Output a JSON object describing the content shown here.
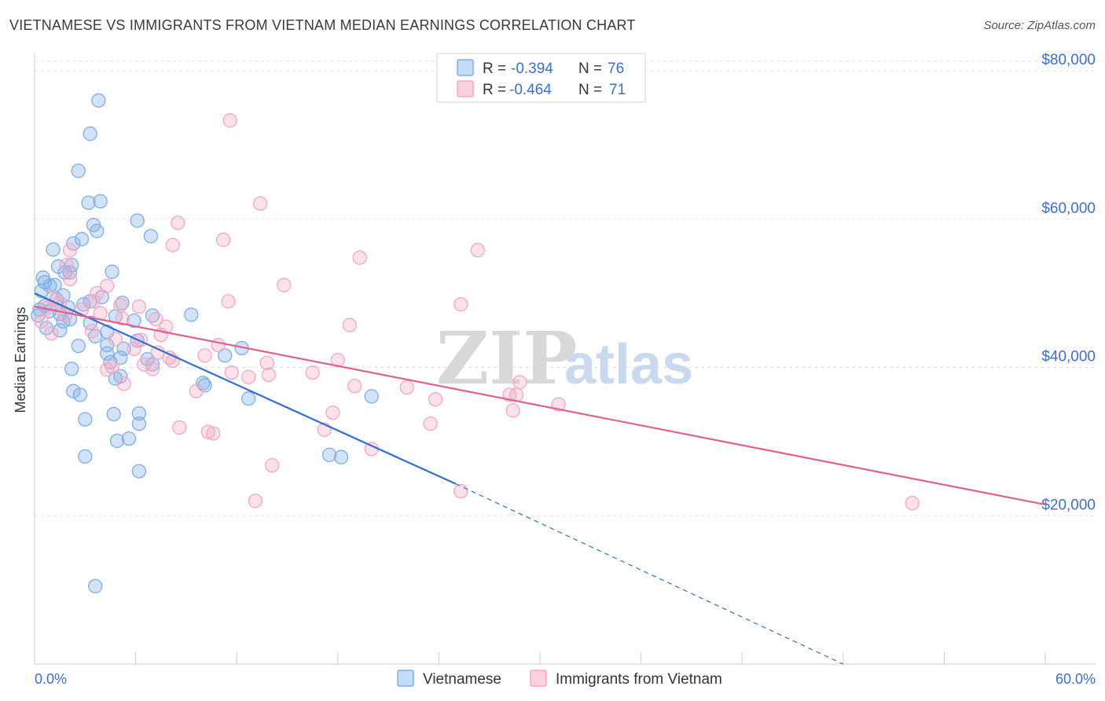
{
  "title": "VIETNAMESE VS IMMIGRANTS FROM VIETNAM MEDIAN EARNINGS CORRELATION CHART",
  "source": "Source: ZipAtlas.com",
  "watermark": {
    "zip": "ZIP",
    "atlas": "atlas"
  },
  "legend_top": {
    "r_label": "R =",
    "n_label": "N =",
    "rows": [
      {
        "r": "-0.394",
        "n": "76"
      },
      {
        "r": "-0.464",
        "n": "71"
      }
    ]
  },
  "chart_data": {
    "type": "scatter",
    "title": "VIETNAMESE VS IMMIGRANTS FROM VIETNAM MEDIAN EARNINGS CORRELATION CHART",
    "xlabel": "",
    "ylabel": "Median Earnings",
    "xlim": [
      0,
      60
    ],
    "ylim": [
      0,
      83500
    ],
    "x_tick_labels": [
      "0.0%",
      "60.0%"
    ],
    "y_ticks": [
      20000,
      40000,
      60000,
      80000
    ],
    "y_tick_labels": [
      "$20,000",
      "$40,000",
      "$60,000",
      "$80,000"
    ],
    "grid": true,
    "legend_position": "top-center",
    "series": [
      {
        "name": "Vietnamese",
        "color": "#7eaee8",
        "line_color": "#2e6fd1",
        "r": -0.394,
        "n": 76,
        "trend": {
          "x0": 0,
          "y0": 50000,
          "x1": 25,
          "y1": 24300,
          "dash_to_x": 48,
          "dash_to_y": 0
        },
        "points": [
          [
            3.8,
            76000
          ],
          [
            3.3,
            71500
          ],
          [
            2.6,
            66500
          ],
          [
            3.2,
            62200
          ],
          [
            3.9,
            62400
          ],
          [
            6.1,
            59800
          ],
          [
            3.5,
            59200
          ],
          [
            3.7,
            58400
          ],
          [
            6.9,
            57700
          ],
          [
            2.8,
            57300
          ],
          [
            2.3,
            56700
          ],
          [
            1.1,
            55900
          ],
          [
            1.4,
            53600
          ],
          [
            2.2,
            53800
          ],
          [
            4.6,
            52900
          ],
          [
            2.1,
            52800
          ],
          [
            0.5,
            52100
          ],
          [
            0.6,
            51500
          ],
          [
            0.9,
            51000
          ],
          [
            1.2,
            51100
          ],
          [
            0.4,
            50300
          ],
          [
            1.7,
            49700
          ],
          [
            1.3,
            49200
          ],
          [
            4.0,
            49500
          ],
          [
            3.3,
            48900
          ],
          [
            5.2,
            48700
          ],
          [
            0.6,
            48300
          ],
          [
            2.0,
            48100
          ],
          [
            0.3,
            47800
          ],
          [
            0.9,
            47600
          ],
          [
            1.5,
            47200
          ],
          [
            7.0,
            47000
          ],
          [
            9.3,
            47100
          ],
          [
            2.1,
            46500
          ],
          [
            1.7,
            46200
          ],
          [
            3.3,
            46000
          ],
          [
            5.9,
            46300
          ],
          [
            0.7,
            45300
          ],
          [
            1.5,
            45000
          ],
          [
            4.3,
            44800
          ],
          [
            3.6,
            44200
          ],
          [
            4.3,
            43000
          ],
          [
            6.1,
            43600
          ],
          [
            2.6,
            42900
          ],
          [
            5.3,
            42500
          ],
          [
            12.3,
            42600
          ],
          [
            4.3,
            41900
          ],
          [
            11.3,
            41600
          ],
          [
            5.1,
            41300
          ],
          [
            6.7,
            41100
          ],
          [
            4.5,
            40700
          ],
          [
            7.0,
            40400
          ],
          [
            2.2,
            39800
          ],
          [
            5.1,
            38800
          ],
          [
            4.8,
            38500
          ],
          [
            10.0,
            37900
          ],
          [
            10.1,
            37600
          ],
          [
            2.3,
            36800
          ],
          [
            2.7,
            36300
          ],
          [
            20.0,
            36100
          ],
          [
            12.7,
            35800
          ],
          [
            6.2,
            33800
          ],
          [
            4.7,
            33700
          ],
          [
            3.0,
            33000
          ],
          [
            6.2,
            32400
          ],
          [
            4.9,
            30100
          ],
          [
            5.6,
            30400
          ],
          [
            3.0,
            28000
          ],
          [
            17.5,
            28200
          ],
          [
            18.2,
            27900
          ],
          [
            6.2,
            26000
          ],
          [
            3.6,
            10500
          ],
          [
            0.2,
            47000
          ],
          [
            1.8,
            52800
          ],
          [
            2.9,
            48500
          ],
          [
            4.8,
            46900
          ]
        ]
      },
      {
        "name": "Immigrants from Vietnam",
        "color": "#f4a8c1",
        "line_color": "#e0618e",
        "r": -0.464,
        "n": 71,
        "trend": {
          "x0": 0,
          "y0": 48200,
          "x1": 60,
          "y1": 21500
        },
        "points": [
          [
            11.6,
            73300
          ],
          [
            13.4,
            62100
          ],
          [
            8.5,
            59500
          ],
          [
            11.2,
            57200
          ],
          [
            8.2,
            56500
          ],
          [
            19.3,
            54800
          ],
          [
            26.3,
            55800
          ],
          [
            1.9,
            53800
          ],
          [
            2.1,
            55800
          ],
          [
            2.1,
            51900
          ],
          [
            4.3,
            51000
          ],
          [
            14.8,
            51100
          ],
          [
            3.7,
            50000
          ],
          [
            1.1,
            49300
          ],
          [
            1.5,
            48700
          ],
          [
            3.5,
            48900
          ],
          [
            11.5,
            48900
          ],
          [
            25.3,
            48500
          ],
          [
            5.1,
            48400
          ],
          [
            6.2,
            48200
          ],
          [
            0.7,
            48000
          ],
          [
            2.8,
            47800
          ],
          [
            3.9,
            47300
          ],
          [
            1.8,
            47000
          ],
          [
            5.2,
            46600
          ],
          [
            7.2,
            46500
          ],
          [
            0.4,
            46200
          ],
          [
            18.7,
            45700
          ],
          [
            7.8,
            45500
          ],
          [
            3.4,
            44900
          ],
          [
            7.5,
            44400
          ],
          [
            1.0,
            44600
          ],
          [
            4.8,
            43800
          ],
          [
            6.3,
            43700
          ],
          [
            5.9,
            42500
          ],
          [
            10.9,
            43000
          ],
          [
            7.3,
            42000
          ],
          [
            10.1,
            41600
          ],
          [
            8.0,
            41300
          ],
          [
            8.2,
            40900
          ],
          [
            18.0,
            41000
          ],
          [
            6.5,
            40400
          ],
          [
            13.8,
            40600
          ],
          [
            4.6,
            40100
          ],
          [
            7.0,
            39800
          ],
          [
            4.3,
            39700
          ],
          [
            11.7,
            39300
          ],
          [
            16.5,
            39300
          ],
          [
            12.7,
            38700
          ],
          [
            13.9,
            39000
          ],
          [
            5.3,
            37800
          ],
          [
            19.0,
            37500
          ],
          [
            22.1,
            37300
          ],
          [
            28.8,
            38000
          ],
          [
            9.6,
            36800
          ],
          [
            28.2,
            36300
          ],
          [
            28.6,
            36300
          ],
          [
            23.8,
            35700
          ],
          [
            31.1,
            35000
          ],
          [
            17.7,
            33900
          ],
          [
            28.4,
            34200
          ],
          [
            23.5,
            32400
          ],
          [
            8.6,
            31900
          ],
          [
            10.3,
            31300
          ],
          [
            10.6,
            31100
          ],
          [
            17.2,
            31600
          ],
          [
            20.0,
            29000
          ],
          [
            14.1,
            26800
          ],
          [
            13.1,
            22000
          ],
          [
            25.3,
            23300
          ],
          [
            52.1,
            21700
          ]
        ]
      }
    ]
  },
  "bottom_legend": [
    "Vietnamese",
    "Immigrants from Vietnam"
  ]
}
